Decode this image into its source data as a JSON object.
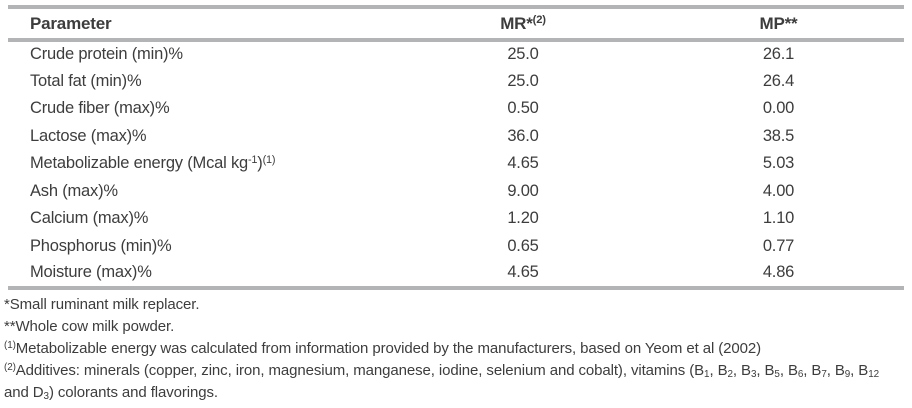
{
  "table": {
    "header": [
      {
        "name": "parameter",
        "parts": [
          {
            "t": "Parameter"
          }
        ]
      },
      {
        "name": "mr",
        "parts": [
          {
            "t": "MR*"
          },
          {
            "t": "(2)",
            "s": "sup"
          }
        ]
      },
      {
        "name": "mp",
        "parts": [
          {
            "t": "MP**"
          }
        ]
      }
    ],
    "rows": [
      {
        "parameter": [
          {
            "t": "Crude protein (min)%"
          }
        ],
        "mr": "25.0",
        "mp": "26.1"
      },
      {
        "parameter": [
          {
            "t": "Total fat (min)%"
          }
        ],
        "mr": "25.0",
        "mp": "26.4"
      },
      {
        "parameter": [
          {
            "t": "Crude fiber (max)%"
          }
        ],
        "mr": "0.50",
        "mp": "0.00"
      },
      {
        "parameter": [
          {
            "t": "Lactose (max)%"
          }
        ],
        "mr": "36.0",
        "mp": "38.5"
      },
      {
        "parameter": [
          {
            "t": "Metabolizable energy (Mcal kg"
          },
          {
            "t": "-1",
            "s": "sup"
          },
          {
            "t": ")"
          },
          {
            "t": "(1)",
            "s": "sup"
          }
        ],
        "mr": "4.65",
        "mp": "5.03"
      },
      {
        "parameter": [
          {
            "t": "Ash (max)%"
          }
        ],
        "mr": "9.00",
        "mp": "4.00"
      },
      {
        "parameter": [
          {
            "t": "Calcium (max)%"
          }
        ],
        "mr": "1.20",
        "mp": "1.10"
      },
      {
        "parameter": [
          {
            "t": "Phosphorus (min)%"
          }
        ],
        "mr": "0.65",
        "mp": "0.77"
      },
      {
        "parameter": [
          {
            "t": "Moisture (max)%"
          }
        ],
        "mr": "4.65",
        "mp": "4.86"
      }
    ]
  },
  "footnotes": [
    [
      {
        "t": "*Small ruminant milk replacer."
      }
    ],
    [
      {
        "t": "**Whole cow milk powder."
      }
    ],
    [
      {
        "t": "(1)",
        "s": "sup"
      },
      {
        "t": "Metabolizable energy was calculated from information provided by the manufacturers, based on Yeom et al (2002)"
      }
    ],
    [
      {
        "t": "(2)",
        "s": "sup"
      },
      {
        "t": "Additives: minerals (copper, zinc, iron, magnesium, manganese, iodine, selenium and cobalt), vitamins (B"
      },
      {
        "t": "1",
        "s": "sub"
      },
      {
        "t": ", B"
      },
      {
        "t": "2",
        "s": "sub"
      },
      {
        "t": ", B"
      },
      {
        "t": "3",
        "s": "sub"
      },
      {
        "t": ", B"
      },
      {
        "t": "5",
        "s": "sub"
      },
      {
        "t": ", B"
      },
      {
        "t": "6",
        "s": "sub"
      },
      {
        "t": ", B"
      },
      {
        "t": "7",
        "s": "sub"
      },
      {
        "t": ", B"
      },
      {
        "t": "9",
        "s": "sub"
      },
      {
        "t": ", B"
      },
      {
        "t": "12",
        "s": "sub"
      },
      {
        "t": " and D"
      },
      {
        "t": "3",
        "s": "sub"
      },
      {
        "t": ") colorants and flavorings."
      }
    ]
  ],
  "colors": {
    "rule": "#b2b4b6",
    "text": "#3d3d3d"
  }
}
